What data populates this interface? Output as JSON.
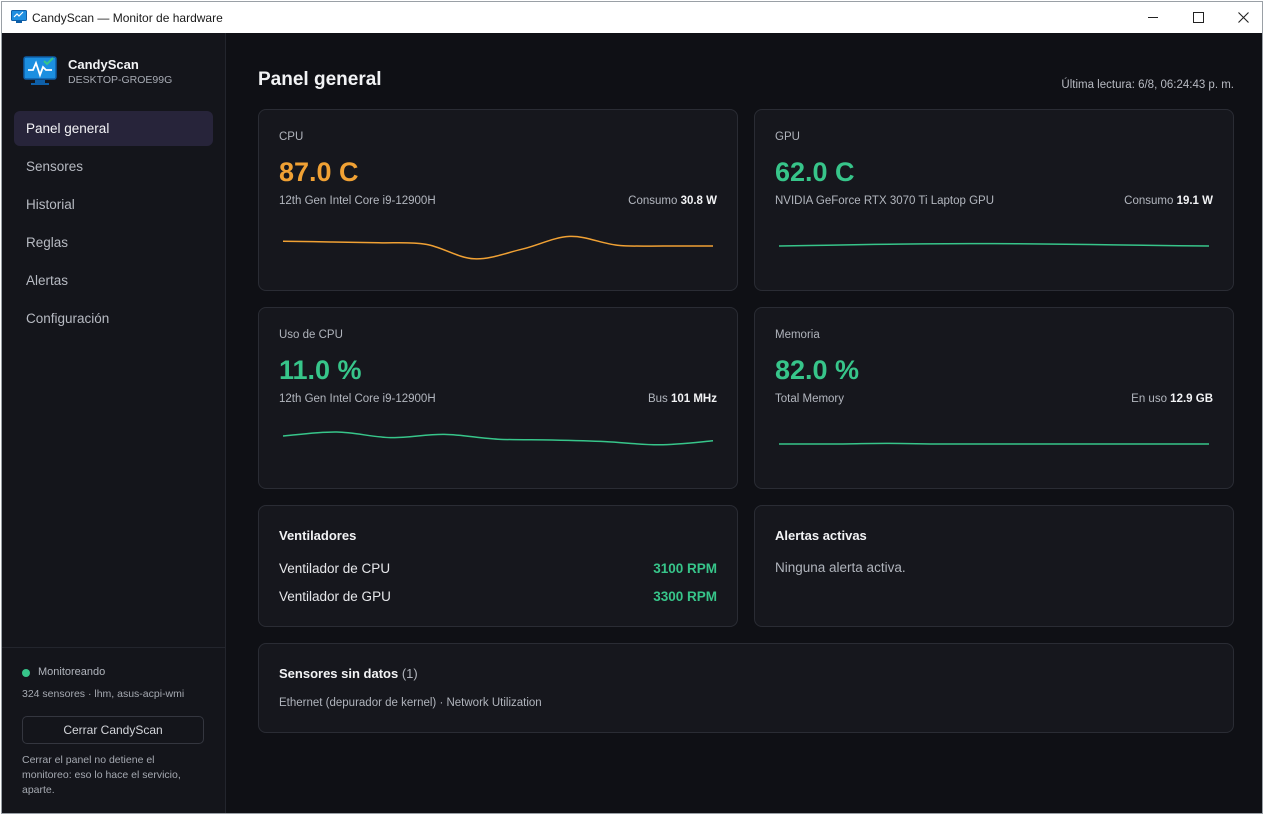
{
  "window": {
    "title": "CandyScan — Monitor de hardware",
    "controls": [
      "minimize",
      "maximize",
      "close"
    ]
  },
  "sidebar": {
    "app_name": "CandyScan",
    "host": "DESKTOP-GROE99G",
    "items": [
      {
        "label": "Panel general",
        "active": true
      },
      {
        "label": "Sensores",
        "active": false
      },
      {
        "label": "Historial",
        "active": false
      },
      {
        "label": "Reglas",
        "active": false
      },
      {
        "label": "Alertas",
        "active": false
      },
      {
        "label": "Configuración",
        "active": false
      }
    ],
    "status": "Monitoreando",
    "status_detail": "324 sensores · lhm, asus-acpi-wmi",
    "close_button": "Cerrar CandyScan",
    "note": "Cerrar el panel no detiene el monitoreo: eso lo hace el servicio, aparte."
  },
  "main": {
    "title": "Panel general",
    "last_reading": "Última lectura: 6/8, 06:24:43 p. m.",
    "cards": {
      "cpu": {
        "label": "CPU",
        "value": "87.0 C",
        "device": "12th Gen Intel Core i9-12900H",
        "meta_label": "Consumo",
        "meta_value": "30.8 W",
        "color": "#f0a134",
        "trend": [
          0.3,
          0.25,
          0.2,
          0.1,
          -0.8,
          -0.2,
          0.6,
          0.05,
          0.0,
          0.0
        ]
      },
      "gpu": {
        "label": "GPU",
        "value": "62.0 C",
        "device": "NVIDIA GeForce RTX 3070 Ti Laptop GPU",
        "meta_label": "Consumo",
        "meta_value": "19.1 W",
        "color": "#37c58a",
        "trend": [
          0.0,
          0.05,
          0.1,
          0.13,
          0.15,
          0.14,
          0.11,
          0.07,
          0.03,
          0.0
        ]
      },
      "cpu_usage": {
        "label": "Uso de CPU",
        "value": "11.0 %",
        "device": "12th Gen Intel Core i9-12900H",
        "meta_label": "Bus",
        "meta_value": "101 MHz",
        "color": "#37c58a",
        "trend": [
          0.5,
          0.75,
          0.4,
          0.6,
          0.3,
          0.25,
          0.15,
          -0.05,
          0.2
        ]
      },
      "memory": {
        "label": "Memoria",
        "value": "82.0 %",
        "device": "Total Memory",
        "meta_label": "En uso",
        "meta_value": "12.9 GB",
        "color": "#37c58a",
        "trend": [
          0.0,
          0.0,
          0.04,
          0.0,
          0.0,
          0.0,
          0.0,
          0.0,
          0.0
        ]
      }
    },
    "fans": {
      "title": "Ventiladores",
      "items": [
        {
          "label": "Ventilador de CPU",
          "rpm": "3100 RPM"
        },
        {
          "label": "Ventilador de GPU",
          "rpm": "3300 RPM"
        }
      ]
    },
    "alerts": {
      "title": "Alertas activas",
      "empty_text": "Ninguna alerta activa."
    },
    "no_data": {
      "title": "Sensores sin datos",
      "count": "(1)",
      "items": [
        "Ethernet (depurador de kernel) · Network Utilization"
      ]
    }
  }
}
